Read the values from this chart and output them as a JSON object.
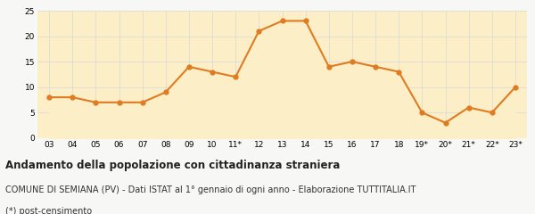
{
  "x_labels": [
    "03",
    "04",
    "05",
    "06",
    "07",
    "08",
    "09",
    "10",
    "11*",
    "12",
    "13",
    "14",
    "15",
    "16",
    "17",
    "18",
    "19*",
    "20*",
    "21*",
    "22*",
    "23*"
  ],
  "y_values": [
    8,
    8,
    7,
    7,
    7,
    9,
    14,
    13,
    12,
    21,
    23,
    23,
    14,
    15,
    14,
    13,
    5,
    3,
    6,
    5,
    10
  ],
  "line_color": "#e07b20",
  "fill_color": "#fcefc8",
  "marker_color": "#e07b20",
  "plot_bg_color": "#fcefc8",
  "outer_bg_color": "#f7f7f5",
  "grid_color": "#d8d8d8",
  "ylim": [
    0,
    25
  ],
  "yticks": [
    0,
    5,
    10,
    15,
    20,
    25
  ],
  "title": "Andamento della popolazione con cittadinanza straniera",
  "subtitle": "COMUNE DI SEMIANA (PV) - Dati ISTAT al 1° gennaio di ogni anno - Elaborazione TUTTITALIA.IT",
  "footnote": "(*) post-censimento",
  "title_fontsize": 8.5,
  "subtitle_fontsize": 7.0,
  "footnote_fontsize": 7.0,
  "tick_fontsize": 6.5,
  "line_width": 1.5,
  "marker_size": 3.5
}
